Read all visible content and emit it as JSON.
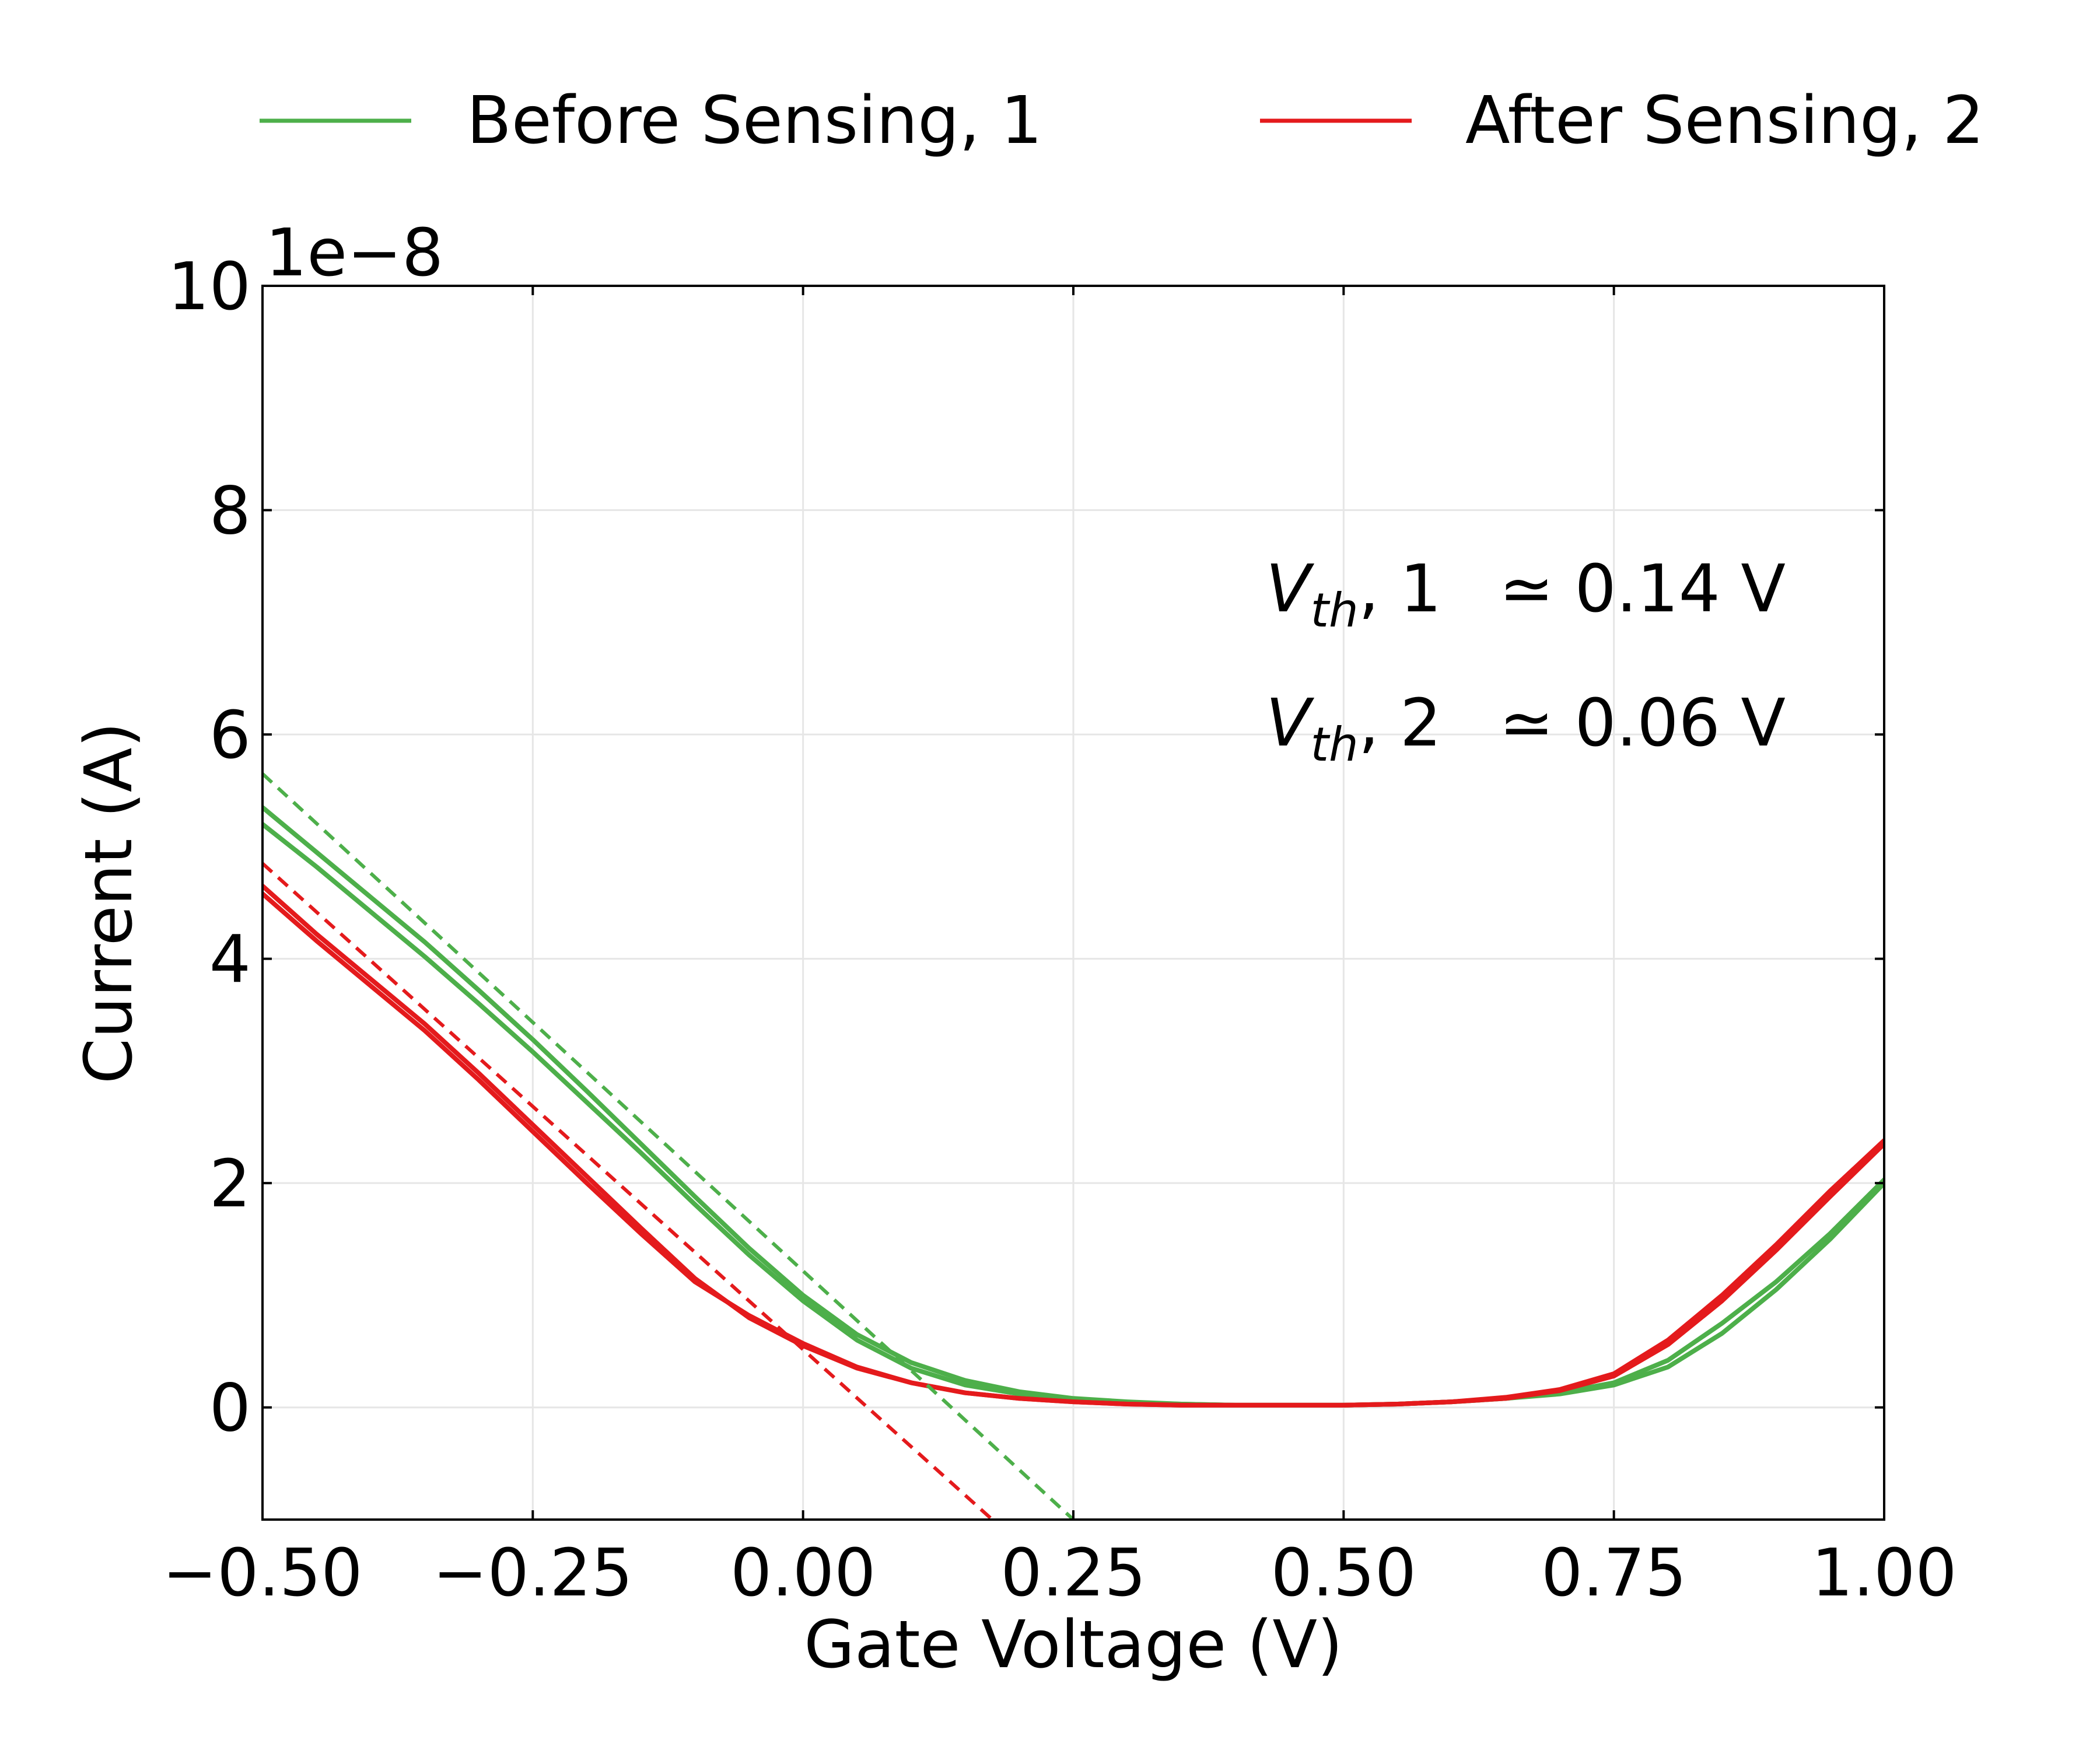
{
  "chart_data": {
    "type": "line",
    "xlabel": "Gate Voltage (V)",
    "ylabel": "Current (A)",
    "y_offset_label": "1e−8",
    "xlim": [
      -0.5,
      1.0
    ],
    "ylim": [
      -1.0,
      10.0
    ],
    "x_ticks": [
      -0.5,
      -0.25,
      0.0,
      0.25,
      0.5,
      0.75,
      1.0
    ],
    "x_tick_labels": [
      "−0.50",
      "−0.25",
      "0.00",
      "0.25",
      "0.50",
      "0.75",
      "1.00"
    ],
    "y_ticks": [
      0,
      2,
      4,
      6,
      8,
      10
    ],
    "y_tick_labels": [
      "0",
      "2",
      "4",
      "6",
      "8",
      "10"
    ],
    "grid": true,
    "legend_position": "top",
    "legend": [
      {
        "label": "Before Sensing, 1",
        "color": "#4daf4a"
      },
      {
        "label": "After Sensing, 2",
        "color": "#e41a1c"
      }
    ],
    "series": [
      {
        "name": "Before Sensing, 1",
        "color": "#4daf4a",
        "style": "solid",
        "x": [
          -0.5,
          -0.45,
          -0.4,
          -0.35,
          -0.3,
          -0.25,
          -0.2,
          -0.15,
          -0.1,
          -0.05,
          0.0,
          0.05,
          0.1,
          0.15,
          0.2,
          0.25,
          0.3,
          0.35,
          0.4,
          0.45,
          0.5,
          0.55,
          0.6,
          0.65,
          0.7,
          0.75,
          0.8,
          0.85,
          0.9,
          0.95,
          1.0
        ],
        "y": [
          5.35,
          4.95,
          4.55,
          4.15,
          3.72,
          3.28,
          2.82,
          2.35,
          1.88,
          1.42,
          1.0,
          0.65,
          0.4,
          0.24,
          0.14,
          0.08,
          0.05,
          0.03,
          0.02,
          0.02,
          0.02,
          0.03,
          0.05,
          0.08,
          0.13,
          0.22,
          0.42,
          0.75,
          1.12,
          1.55,
          2.03
        ]
      },
      {
        "name": "",
        "color": "#4daf4a",
        "style": "solid",
        "x": [
          -0.5,
          -0.45,
          -0.4,
          -0.35,
          -0.3,
          -0.25,
          -0.2,
          -0.15,
          -0.1,
          -0.05,
          0.0,
          0.05,
          0.1,
          0.15,
          0.2,
          0.25,
          0.3,
          0.35,
          0.4,
          0.45,
          0.5,
          0.55,
          0.6,
          0.65,
          0.7,
          0.75,
          0.8,
          0.85,
          0.9,
          0.95,
          1.0
        ],
        "y": [
          5.2,
          4.82,
          4.42,
          4.02,
          3.6,
          3.17,
          2.72,
          2.27,
          1.81,
          1.36,
          0.95,
          0.6,
          0.35,
          0.2,
          0.12,
          0.07,
          0.04,
          0.03,
          0.02,
          0.02,
          0.02,
          0.03,
          0.05,
          0.08,
          0.12,
          0.2,
          0.36,
          0.66,
          1.05,
          1.5,
          2.0
        ]
      },
      {
        "name": "After Sensing, 2",
        "color": "#e41a1c",
        "style": "solid",
        "x": [
          -0.5,
          -0.45,
          -0.4,
          -0.35,
          -0.3,
          -0.25,
          -0.2,
          -0.15,
          -0.1,
          -0.05,
          0.0,
          0.05,
          0.1,
          0.15,
          0.2,
          0.25,
          0.3,
          0.35,
          0.4,
          0.45,
          0.5,
          0.55,
          0.6,
          0.65,
          0.7,
          0.75,
          0.8,
          0.85,
          0.9,
          0.95,
          1.0
        ],
        "y": [
          4.65,
          4.22,
          3.82,
          3.42,
          2.98,
          2.52,
          2.06,
          1.6,
          1.15,
          0.8,
          0.55,
          0.35,
          0.22,
          0.13,
          0.08,
          0.05,
          0.03,
          0.02,
          0.02,
          0.02,
          0.02,
          0.03,
          0.05,
          0.09,
          0.16,
          0.3,
          0.6,
          1.0,
          1.45,
          1.93,
          2.38
        ]
      },
      {
        "name": "",
        "color": "#e41a1c",
        "style": "solid",
        "x": [
          -0.5,
          -0.45,
          -0.4,
          -0.35,
          -0.3,
          -0.25,
          -0.2,
          -0.15,
          -0.1,
          -0.05,
          0.0,
          0.05,
          0.1,
          0.15,
          0.2,
          0.25,
          0.3,
          0.35,
          0.4,
          0.45,
          0.5,
          0.55,
          0.6,
          0.65,
          0.7,
          0.75,
          0.8,
          0.85,
          0.9,
          0.95,
          1.0
        ],
        "y": [
          4.58,
          4.16,
          3.76,
          3.36,
          2.92,
          2.46,
          2.0,
          1.55,
          1.12,
          0.82,
          0.57,
          0.36,
          0.22,
          0.13,
          0.08,
          0.05,
          0.03,
          0.02,
          0.02,
          0.02,
          0.02,
          0.03,
          0.05,
          0.08,
          0.15,
          0.28,
          0.56,
          0.95,
          1.4,
          1.88,
          2.35
        ]
      },
      {
        "name": "",
        "color": "#4daf4a",
        "style": "dashed",
        "x": [
          -0.5,
          0.25
        ],
        "y": [
          5.65,
          -1.0
        ]
      },
      {
        "name": "",
        "color": "#e41a1c",
        "style": "dashed",
        "x": [
          -0.5,
          0.175
        ],
        "y": [
          4.85,
          -1.0
        ]
      }
    ],
    "annotations": [
      {
        "label": "V",
        "subscript": "th",
        "suffix": ", 1",
        "value": "≃ 0.14 V"
      },
      {
        "label": "V",
        "subscript": "th",
        "suffix": ", 2",
        "value": "≃ 0.06 V"
      }
    ]
  }
}
